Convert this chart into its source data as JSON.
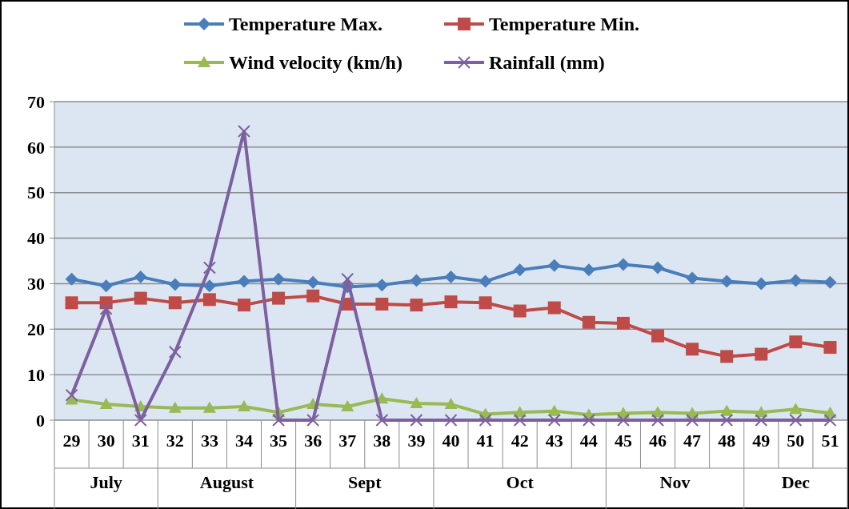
{
  "chart_data": {
    "type": "line",
    "categories": [
      "29",
      "30",
      "31",
      "32",
      "33",
      "34",
      "35",
      "36",
      "37",
      "38",
      "39",
      "40",
      "41",
      "42",
      "43",
      "44",
      "45",
      "46",
      "47",
      "48",
      "49",
      "50",
      "51"
    ],
    "series": [
      {
        "name": "Temperature Max.",
        "color": "#4a7ebb",
        "marker": "diamond",
        "values": [
          31,
          29.5,
          31.5,
          29.8,
          29.5,
          30.5,
          31,
          30.3,
          29.3,
          29.7,
          30.7,
          31.5,
          30.5,
          33,
          34,
          33,
          34.2,
          33.5,
          31.2,
          30.5,
          30,
          30.7,
          30.3
        ]
      },
      {
        "name": "Temperature Min.",
        "color": "#be4b48",
        "marker": "square",
        "values": [
          25.8,
          25.8,
          26.8,
          25.8,
          26.5,
          25.3,
          26.8,
          27.3,
          25.5,
          25.5,
          25.3,
          26,
          25.8,
          24,
          24.7,
          21.5,
          21.3,
          18.5,
          15.6,
          14,
          14.5,
          17.2,
          16
        ]
      },
      {
        "name": "Wind velocity (km/h)",
        "color": "#98b954",
        "marker": "triangle",
        "values": [
          4.5,
          3.5,
          3,
          2.7,
          2.7,
          3,
          1.7,
          3.5,
          3,
          4.7,
          3.7,
          3.5,
          1.3,
          1.7,
          2,
          1.2,
          1.5,
          1.7,
          1.5,
          2,
          1.7,
          2.4,
          1.6
        ]
      },
      {
        "name": "Rainfall (mm)",
        "color": "#7d60a0",
        "marker": "cross",
        "values": [
          5.5,
          24.5,
          0,
          15,
          33.5,
          63.5,
          0,
          0,
          31,
          0,
          0,
          0,
          0,
          0,
          0,
          0,
          0,
          0,
          0,
          0,
          0,
          0,
          0
        ]
      }
    ],
    "ylim": [
      0,
      70
    ],
    "yticks": [
      0,
      10,
      20,
      30,
      40,
      50,
      60,
      70
    ],
    "grid": "y",
    "legend": "top",
    "annotations": [
      "July",
      "August",
      "Sept",
      "Oct",
      "Nov",
      "Dec"
    ]
  }
}
